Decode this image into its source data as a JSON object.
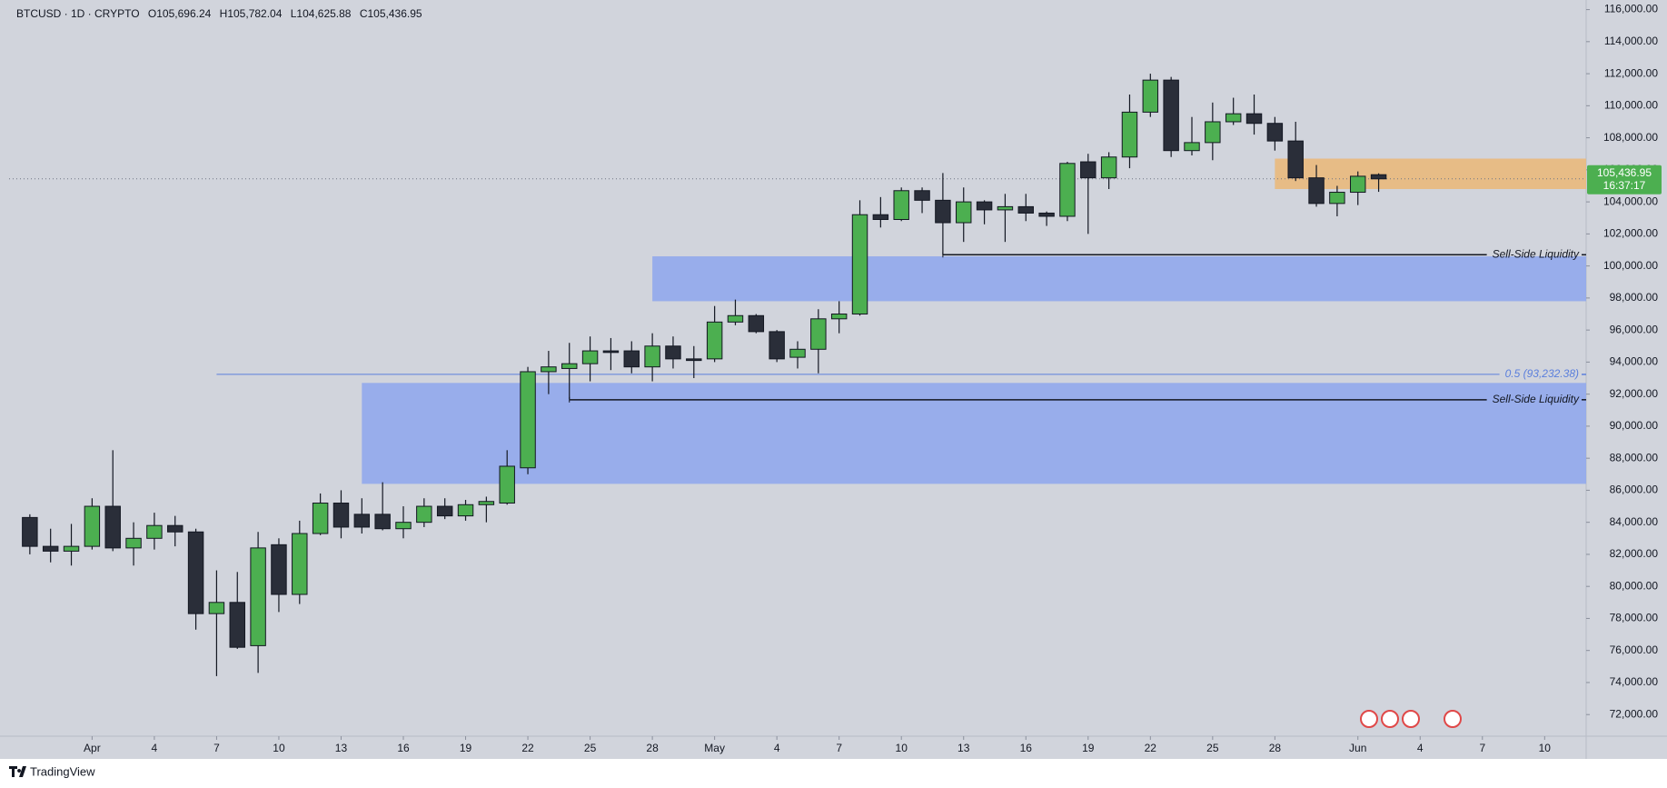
{
  "chart_data": {
    "type": "candlestick",
    "header": {
      "symbol": "BTCUSD · 1D · CRYPTO",
      "open": "O105,696.24",
      "high": "H105,782.04",
      "low": "L104,625.88",
      "close": "C105,436.95"
    },
    "brand": "TradingView",
    "x": [
      "03-29",
      "03-30",
      "03-31",
      "04-01",
      "04-02",
      "04-03",
      "04-04",
      "04-05",
      "04-06",
      "04-07",
      "04-08",
      "04-09",
      "04-10",
      "04-11",
      "04-12",
      "04-13",
      "04-14",
      "04-15",
      "04-16",
      "04-17",
      "04-18",
      "04-19",
      "04-20",
      "04-21",
      "04-22",
      "04-23",
      "04-24",
      "04-25",
      "04-26",
      "04-27",
      "04-28",
      "04-29",
      "04-30",
      "05-01",
      "05-02",
      "05-03",
      "05-04",
      "05-05",
      "05-06",
      "05-07",
      "05-08",
      "05-09",
      "05-10",
      "05-11",
      "05-12",
      "05-13",
      "05-14",
      "05-15",
      "05-16",
      "05-17",
      "05-18",
      "05-19",
      "05-20",
      "05-21",
      "05-22",
      "05-23",
      "05-24",
      "05-25",
      "05-26",
      "05-27",
      "05-28",
      "05-29",
      "05-30",
      "05-31",
      "06-01",
      "06-02"
    ],
    "open": [
      84300,
      82500,
      82200,
      82500,
      85000,
      82400,
      83000,
      83800,
      83400,
      78300,
      79000,
      76300,
      82600,
      79500,
      83300,
      85200,
      84500,
      84500,
      83600,
      84000,
      85000,
      84400,
      85100,
      85200,
      87400,
      93400,
      93600,
      93900,
      94700,
      94700,
      93700,
      95000,
      94200,
      94200,
      96500,
      96900,
      95900,
      94300,
      94800,
      96700,
      97000,
      103200,
      102900,
      104700,
      104100,
      102700,
      104000,
      103500,
      103700,
      103300,
      103100,
      106500,
      105500,
      106800,
      109600,
      111600,
      107200,
      107700,
      109000,
      109500,
      108900,
      107800,
      105500,
      103900,
      104600,
      105696.24
    ],
    "high": [
      84500,
      83600,
      83900,
      85500,
      88500,
      84000,
      84600,
      84400,
      83600,
      81000,
      80900,
      83400,
      83000,
      84100,
      85800,
      86000,
      85500,
      86500,
      85000,
      85500,
      85500,
      85400,
      85600,
      88500,
      93700,
      94700,
      95200,
      95600,
      95500,
      95300,
      95800,
      95600,
      95000,
      97500,
      97900,
      97000,
      96000,
      95300,
      97300,
      97800,
      104100,
      104300,
      104900,
      104900,
      105800,
      104900,
      104100,
      104500,
      104500,
      103400,
      106500,
      107000,
      107100,
      110700,
      112000,
      111800,
      109300,
      110200,
      110500,
      110700,
      109300,
      109000,
      106300,
      105000,
      105900,
      105782.04
    ],
    "low": [
      82000,
      81500,
      81300,
      82300,
      82200,
      81300,
      82300,
      82500,
      77300,
      74400,
      76100,
      74600,
      78400,
      78900,
      83200,
      83000,
      83300,
      83500,
      83000,
      83700,
      84200,
      84100,
      84000,
      85100,
      87000,
      92000,
      91700,
      92800,
      93500,
      93300,
      92800,
      93600,
      93000,
      94000,
      96300,
      95800,
      94000,
      93600,
      93300,
      95800,
      96900,
      102400,
      102800,
      103300,
      100700,
      101500,
      102600,
      101500,
      102800,
      102500,
      102800,
      102000,
      104800,
      106100,
      109300,
      106800,
      106900,
      106600,
      108800,
      108200,
      107200,
      105300,
      103700,
      103100,
      103800,
      104625.88
    ],
    "close": [
      82500,
      82200,
      82500,
      85000,
      82400,
      83000,
      83800,
      83400,
      78300,
      79000,
      76200,
      82400,
      79500,
      83300,
      85200,
      83700,
      83700,
      83600,
      84000,
      85000,
      84400,
      85100,
      85300,
      87500,
      93400,
      93700,
      93900,
      94700,
      94600,
      93700,
      95000,
      94200,
      94100,
      96500,
      96900,
      95900,
      94200,
      94800,
      96700,
      97000,
      103200,
      102900,
      104700,
      104100,
      102700,
      104000,
      103500,
      103700,
      103300,
      103100,
      106400,
      105500,
      106800,
      109600,
      111600,
      107200,
      107700,
      109000,
      109500,
      108900,
      107800,
      105500,
      103900,
      104600,
      105600,
      105436.95
    ],
    "up_color": "#4caf50",
    "down_color": "#2a2e39",
    "xlim": [
      "03-28",
      "06-12"
    ],
    "xticks": [
      {
        "value": "04-01",
        "label": "Apr"
      },
      {
        "value": "04-04",
        "label": "4"
      },
      {
        "value": "04-07",
        "label": "7"
      },
      {
        "value": "04-10",
        "label": "10"
      },
      {
        "value": "04-13",
        "label": "13"
      },
      {
        "value": "04-16",
        "label": "16"
      },
      {
        "value": "04-19",
        "label": "19"
      },
      {
        "value": "04-22",
        "label": "22"
      },
      {
        "value": "04-25",
        "label": "25"
      },
      {
        "value": "04-28",
        "label": "28"
      },
      {
        "value": "05-01",
        "label": "May"
      },
      {
        "value": "05-04",
        "label": "4"
      },
      {
        "value": "05-07",
        "label": "7"
      },
      {
        "value": "05-10",
        "label": "10"
      },
      {
        "value": "05-13",
        "label": "13"
      },
      {
        "value": "05-16",
        "label": "16"
      },
      {
        "value": "05-19",
        "label": "19"
      },
      {
        "value": "05-22",
        "label": "22"
      },
      {
        "value": "05-25",
        "label": "25"
      },
      {
        "value": "05-28",
        "label": "28"
      },
      {
        "value": "06-01",
        "label": "Jun"
      },
      {
        "value": "06-04",
        "label": "4"
      },
      {
        "value": "06-07",
        "label": "7"
      },
      {
        "value": "06-10",
        "label": "10"
      }
    ],
    "ylim": [
      70650,
      116600
    ],
    "yticks": [
      {
        "value": 72000,
        "label": "72,000.00"
      },
      {
        "value": 74000,
        "label": "74,000.00"
      },
      {
        "value": 76000,
        "label": "76,000.00"
      },
      {
        "value": 78000,
        "label": "78,000.00"
      },
      {
        "value": 80000,
        "label": "80,000.00"
      },
      {
        "value": 82000,
        "label": "82,000.00"
      },
      {
        "value": 84000,
        "label": "84,000.00"
      },
      {
        "value": 86000,
        "label": "86,000.00"
      },
      {
        "value": 88000,
        "label": "88,000.00"
      },
      {
        "value": 90000,
        "label": "90,000.00"
      },
      {
        "value": 92000,
        "label": "92,000.00"
      },
      {
        "value": 94000,
        "label": "94,000.00"
      },
      {
        "value": 96000,
        "label": "96,000.00"
      },
      {
        "value": 98000,
        "label": "98,000.00"
      },
      {
        "value": 100000,
        "label": "100,000.00"
      },
      {
        "value": 102000,
        "label": "102,000.00"
      },
      {
        "value": 104000,
        "label": "104,000.00"
      },
      {
        "value": 106000,
        "label": "106,000.00"
      },
      {
        "value": 108000,
        "label": "108,000.00"
      },
      {
        "value": 110000,
        "label": "110,000.00"
      },
      {
        "value": 112000,
        "label": "112,000.00"
      },
      {
        "value": 114000,
        "label": "114,000.00"
      },
      {
        "value": 116000,
        "label": "116,000.00"
      }
    ],
    "zones": [
      {
        "start": "04-14",
        "top": 92700,
        "bottom": 86400,
        "color": "#91a8ec"
      },
      {
        "start": "04-28",
        "top": 100600,
        "bottom": 97800,
        "color": "#91a8ec"
      },
      {
        "start": "05-28",
        "top": 106700,
        "bottom": 104800,
        "color": "#e9b97c"
      }
    ],
    "levels": [
      {
        "start": "05-12",
        "value": 100700,
        "label": "Sell-Side Liquidity",
        "color": "#131722"
      },
      {
        "start": "04-24",
        "value": 91650,
        "label": "Sell-Side Liquidity",
        "color": "#131722"
      },
      {
        "start": "04-07",
        "value": 93232.38,
        "label": "0.5 (93,232.38)",
        "color": "#5b7fdc"
      }
    ],
    "last_price": {
      "value": 105436.95,
      "label": "105,436.95",
      "countdown": "16:37:17",
      "color": "#4caf50"
    }
  }
}
